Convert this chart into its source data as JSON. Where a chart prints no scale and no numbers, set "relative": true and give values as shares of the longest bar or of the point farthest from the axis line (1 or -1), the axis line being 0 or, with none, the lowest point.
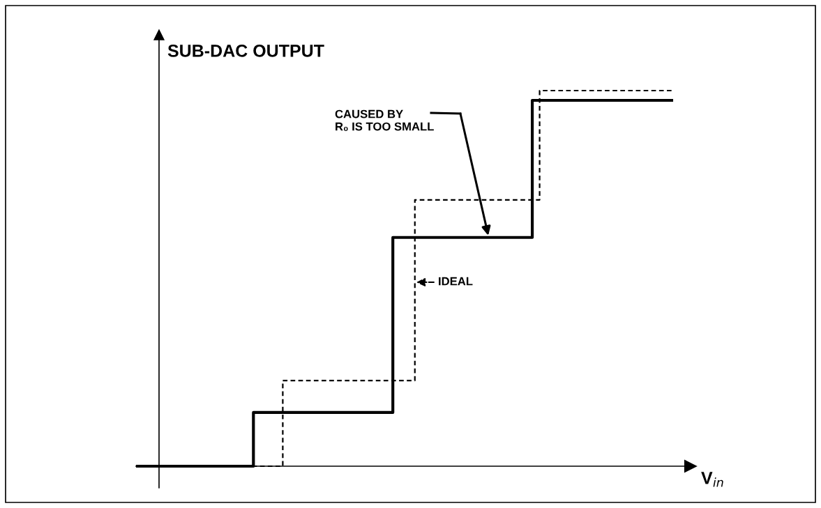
{
  "chart_data": {
    "type": "step",
    "relative": true,
    "ylabel": "SUB-DAC OUTPUT",
    "xlabel": "V$_{in}$",
    "categories": [
      null,
      null,
      null,
      null,
      null,
      null,
      null,
      null,
      null,
      null,
      null,
      null,
      null,
      null,
      null,
      null,
      null,
      null,
      null,
      null,
      null,
      null,
      null,
      null,
      null,
      null,
      null,
      null,
      null,
      null,
      null,
      null,
      null,
      null,
      null,
      null,
      null,
      null,
      null,
      null,
      null,
      null,
      null,
      null,
      null,
      null,
      null,
      null,
      null,
      null,
      null,
      null,
      null,
      null,
      null,
      null,
      null,
      null,
      null,
      null,
      null,
      null,
      null,
      null,
      null,
      null,
      null,
      null,
      null,
      null,
      null,
      null,
      null,
      null
    ],
    "series": [
      {
        "color": "#000000",
        "line_style": "solid",
        "values": [
          0,
          0,
          0,
          0,
          0,
          0,
          0,
          0,
          0,
          0,
          0,
          0,
          0,
          0,
          0,
          0,
          0.143,
          0.143,
          0.143,
          0.143,
          0.143,
          0.143,
          0.143,
          0.143,
          0.143,
          0.143,
          0.143,
          0.143,
          0.143,
          0.143,
          0.143,
          0.143,
          0.143,
          0.143,
          0.143,
          0.609,
          0.609,
          0.609,
          0.609,
          0.609,
          0.609,
          0.609,
          0.609,
          0.609,
          0.609,
          0.609,
          0.609,
          0.609,
          0.609,
          0.609,
          0.609,
          0.609,
          0.609,
          0.609,
          0.974,
          0.974,
          0.974,
          0.974,
          0.974,
          0.974,
          0.974,
          0.974,
          0.974,
          0.974,
          0.974,
          0.974,
          0.974,
          0.974,
          0.974,
          0.974,
          0.974,
          0.974,
          0.974,
          0.974
        ]
      },
      {
        "color": "#000000",
        "line_style": "dashed",
        "values": [
          0,
          0,
          0,
          0,
          0,
          0,
          0,
          0,
          0,
          0,
          0,
          0,
          0,
          0,
          0,
          0,
          0,
          0,
          0,
          0,
          0.228,
          0.228,
          0.228,
          0.228,
          0.228,
          0.228,
          0.228,
          0.228,
          0.228,
          0.228,
          0.228,
          0.228,
          0.228,
          0.228,
          0.228,
          0.228,
          0.228,
          0.228,
          0.709,
          0.709,
          0.709,
          0.709,
          0.709,
          0.709,
          0.709,
          0.709,
          0.709,
          0.709,
          0.709,
          0.709,
          0.709,
          0.709,
          0.709,
          0.709,
          0.709,
          1,
          1,
          1,
          1,
          1,
          1,
          1,
          1,
          1,
          1,
          1,
          1,
          1,
          1,
          1,
          1,
          1,
          1,
          1
        ]
      }
    ],
    "annotations": [
      "CAUSED BY\nR₀ IS TOO SMALL",
      "IDEAL"
    ]
  }
}
